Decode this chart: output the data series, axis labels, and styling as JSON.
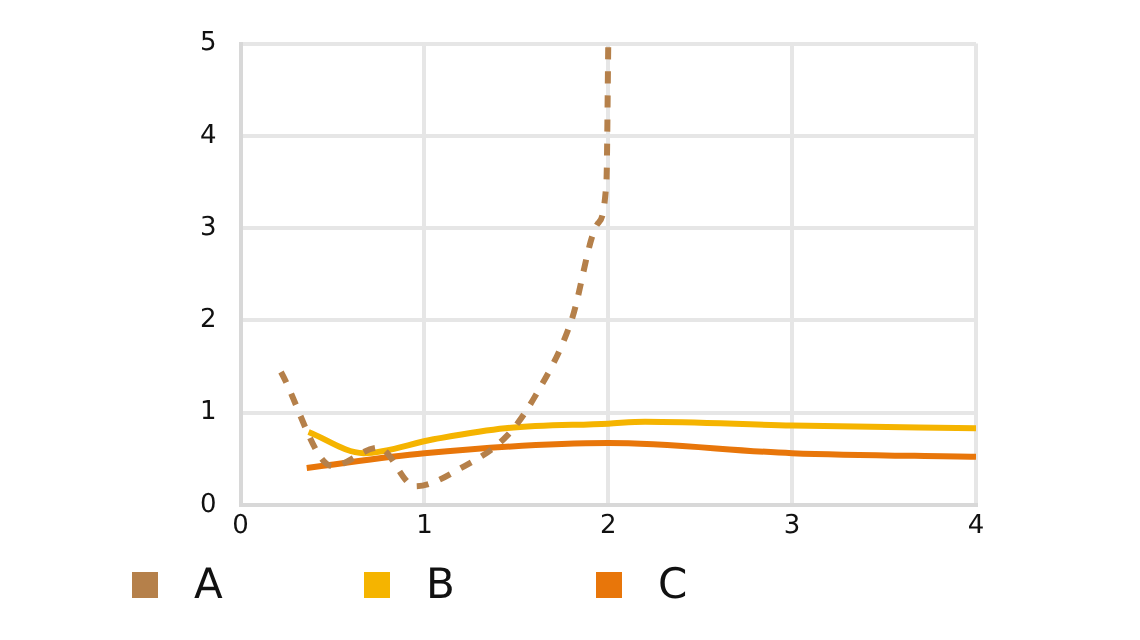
{
  "chart_data": {
    "type": "line",
    "xlim": [
      0,
      4
    ],
    "xticks": [
      0,
      1,
      2,
      3,
      4
    ],
    "ylim": [
      0,
      5
    ],
    "yticks": [
      0,
      1,
      2,
      3,
      4,
      5
    ],
    "grid": true,
    "legend": "bottom left",
    "marker": "none",
    "series": [
      {
        "name": "A",
        "color": "#b5804a",
        "line_style": "dashed",
        "x": [
          0.22,
          0.5,
          0.75,
          0.95,
          1.2,
          1.45,
          1.6,
          1.8,
          1.94,
          1.99,
          2.0
        ],
        "values": [
          1.44,
          0.42,
          0.62,
          0.2,
          0.4,
          0.75,
          1.17,
          2.0,
          3.04,
          3.5,
          5.0
        ]
      },
      {
        "name": "B",
        "color": "#f5b400",
        "line_style": "solid",
        "x": [
          0.37,
          0.67,
          1.05,
          1.44,
          2.0,
          2.2,
          3.0,
          4.0
        ],
        "values": [
          0.79,
          0.56,
          0.71,
          0.83,
          0.88,
          0.9,
          0.86,
          0.83
        ]
      },
      {
        "name": "C",
        "color": "#e8760a",
        "line_style": "solid",
        "x": [
          0.36,
          1.0,
          2.0,
          3.0,
          4.0
        ],
        "values": [
          0.4,
          0.56,
          0.67,
          0.56,
          0.52
        ]
      }
    ]
  }
}
